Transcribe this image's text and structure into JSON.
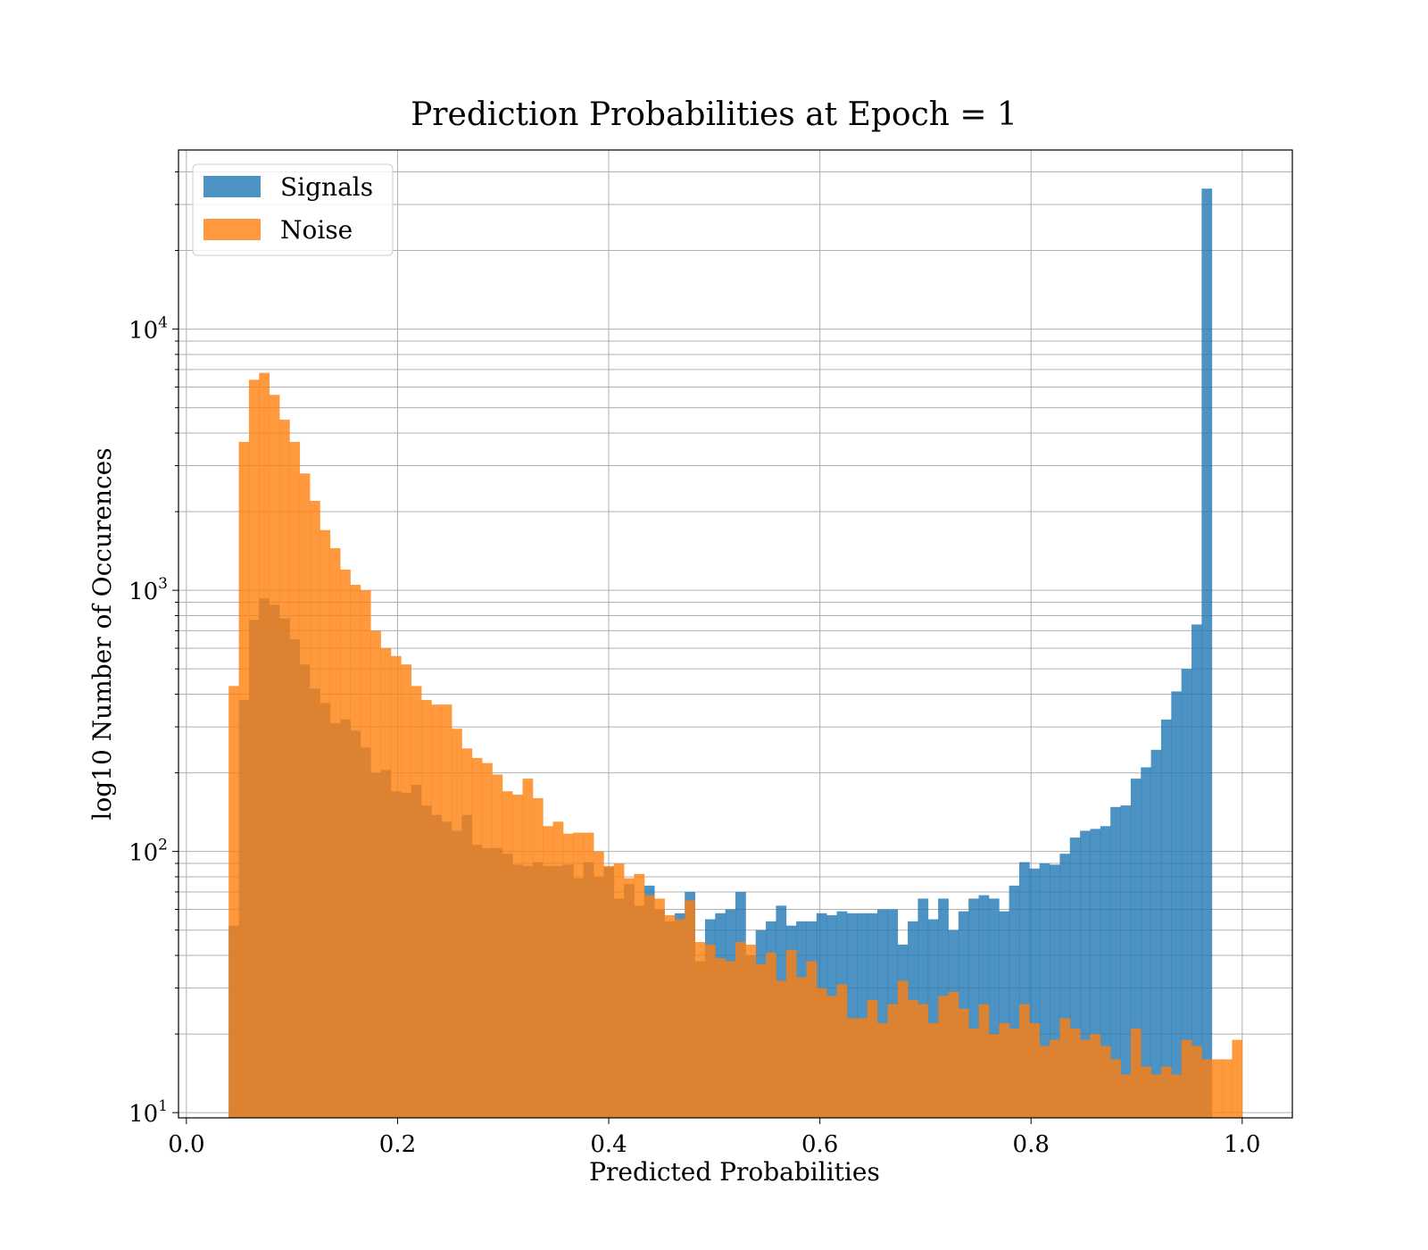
{
  "chart_data": {
    "type": "bar",
    "subtype": "overlaid-histogram",
    "title": "Prediction Probabilities at Epoch = 1",
    "xlabel": "Predicted Probabilities",
    "ylabel": "log10 Number of Occurences",
    "xlim": [
      -0.0075,
      1.0475
    ],
    "ylim": [
      9.55,
      48500
    ],
    "yscale": "log",
    "grid": true,
    "legend_position": "top-left",
    "x_ticks": [
      "0.0",
      "0.2",
      "0.4",
      "0.6",
      "0.8",
      "1.0"
    ],
    "x_tick_values": [
      0.0,
      0.2,
      0.4,
      0.6,
      0.8,
      1.0
    ],
    "y_ticks": [
      {
        "base": "10",
        "exp": "1",
        "value": 10
      },
      {
        "base": "10",
        "exp": "2",
        "value": 100
      },
      {
        "base": "10",
        "exp": "3",
        "value": 1000
      },
      {
        "base": "10",
        "exp": "4",
        "value": 10000
      }
    ],
    "bins": {
      "start": 0.04,
      "end": 1.0,
      "count": 100
    },
    "series": [
      {
        "name": "Signals",
        "color": "#1f77b4",
        "opacity": 0.8,
        "values": [
          52,
          380,
          770,
          930,
          880,
          780,
          650,
          520,
          420,
          370,
          310,
          320,
          290,
          250,
          200,
          205,
          170,
          168,
          180,
          150,
          138,
          130,
          120,
          138,
          106,
          103,
          103,
          98,
          89,
          88,
          91,
          88,
          88,
          89,
          79,
          91,
          80,
          87,
          66,
          75,
          62,
          74,
          60,
          54,
          58,
          70,
          38,
          55,
          58,
          60,
          70,
          40,
          50,
          54,
          62,
          52,
          54,
          54,
          58,
          57,
          59,
          58,
          58,
          58,
          60,
          60,
          44,
          54,
          66,
          55,
          66,
          50,
          59,
          66,
          68,
          66,
          59,
          74,
          91,
          86,
          90,
          89,
          98,
          113,
          120,
          122,
          125,
          148,
          150,
          190,
          210,
          245,
          320,
          410,
          500,
          740,
          34500,
          0,
          0,
          0
        ]
      },
      {
        "name": "Noise",
        "color": "#ff7f0e",
        "opacity": 0.8,
        "values": [
          430,
          3700,
          6400,
          6800,
          5600,
          4500,
          3700,
          2800,
          2200,
          1700,
          1450,
          1200,
          1050,
          1000,
          700,
          600,
          560,
          520,
          430,
          380,
          365,
          365,
          295,
          248,
          228,
          218,
          197,
          170,
          165,
          190,
          160,
          125,
          130,
          117,
          118,
          118,
          100,
          88,
          90,
          79,
          82,
          68,
          66,
          57,
          55,
          65,
          45,
          44,
          39,
          38,
          45,
          44,
          37,
          41,
          32,
          42,
          33,
          38,
          30,
          28,
          31,
          23,
          23,
          27,
          22,
          26,
          32,
          27,
          26,
          22,
          28,
          29,
          25,
          21,
          26,
          20,
          22,
          21,
          26,
          22,
          18,
          19,
          23,
          21,
          19,
          20,
          18,
          16,
          14,
          21,
          15,
          14,
          15,
          14,
          19,
          18,
          16,
          16,
          16,
          19
        ]
      }
    ]
  }
}
